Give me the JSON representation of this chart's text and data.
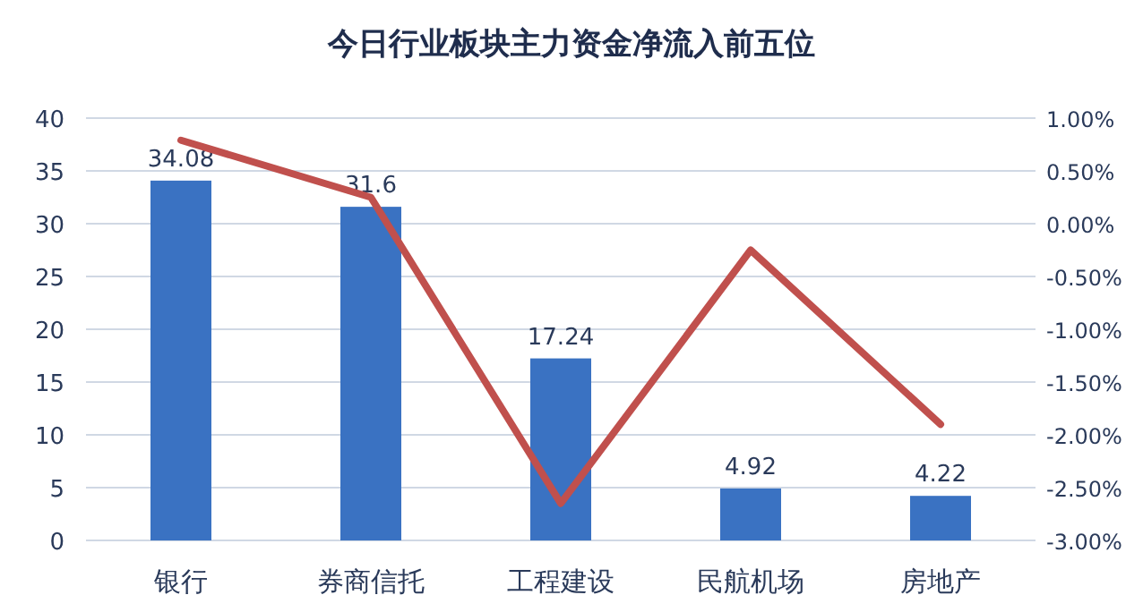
{
  "chart_data": {
    "type": "bar",
    "title": "今日行业板块主力资金净流入前五位",
    "categories": [
      "银行",
      "券商信托",
      "工程建设",
      "民航机场",
      "房地产"
    ],
    "series": [
      {
        "color": "#3a72c2",
        "values": [
          34.08,
          31.6,
          17.24,
          4.92,
          4.22
        ],
        "value_labels": [
          "34.08",
          "31.6",
          "17.24",
          "4.92",
          "4.22"
        ]
      },
      {
        "type": "line",
        "axis": "y2",
        "color": "#c0504d",
        "values": [
          0.79,
          0.25,
          -2.65,
          -0.25,
          -1.9
        ]
      }
    ],
    "ylim": [
      0,
      40
    ],
    "yticks": [
      0,
      5,
      10,
      15,
      20,
      25,
      30,
      35,
      40
    ],
    "y2lim": [
      -3,
      1
    ],
    "y2ticks": [
      {
        "value": -3,
        "label": "-3.00%"
      },
      {
        "value": -2.5,
        "label": "-2.50%"
      },
      {
        "value": -2,
        "label": "-2.00%"
      },
      {
        "value": -1.5,
        "label": "-1.50%"
      },
      {
        "value": -1,
        "label": "-1.00%"
      },
      {
        "value": -0.5,
        "label": "-0.50%"
      },
      {
        "value": 0,
        "label": "0.00%"
      },
      {
        "value": 0.5,
        "label": "0.50%"
      },
      {
        "value": 1,
        "label": "1.00%"
      }
    ],
    "grid": "y"
  }
}
